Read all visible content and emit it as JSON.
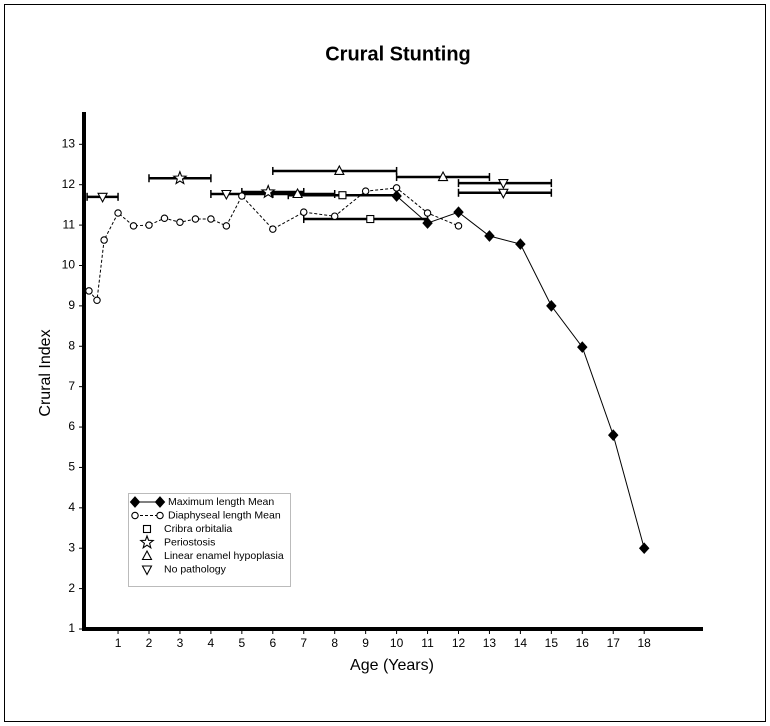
{
  "chart_data": {
    "type": "scatter",
    "title": "Crural Stunting",
    "xlabel": "Age (Years)",
    "ylabel": "Crural  Index",
    "xlim": [
      -0.1,
      19.9
    ],
    "ylim": [
      1,
      13.8
    ],
    "xticks": [
      1,
      2,
      3,
      4,
      5,
      6,
      7,
      8,
      9,
      10,
      11,
      12,
      13,
      14,
      15,
      16,
      17,
      18
    ],
    "yticks": [
      1,
      2,
      3,
      4,
      5,
      6,
      7,
      8,
      9,
      10,
      11,
      12,
      13
    ],
    "series": [
      {
        "name": "Maximum length Mean",
        "marker": "diamond",
        "line": "solid",
        "color": "#000000",
        "x": [
          10,
          11,
          12,
          13,
          14,
          15,
          16,
          17,
          18
        ],
        "values": [
          11.72,
          11.05,
          11.32,
          10.73,
          10.53,
          9.0,
          7.98,
          5.8,
          3.0
        ]
      },
      {
        "name": "Diaphyseal length Mean",
        "marker": "circle",
        "line": "dashed",
        "color": "#000000",
        "x": [
          0.06,
          0.32,
          0.55,
          1,
          1.5,
          2,
          2.5,
          3,
          3.5,
          4,
          4.5,
          5,
          6,
          7,
          8,
          9,
          10,
          11,
          12
        ],
        "values": [
          9.37,
          9.14,
          10.63,
          11.3,
          10.98,
          11.0,
          11.17,
          11.07,
          11.15,
          11.15,
          10.98,
          11.72,
          10.9,
          11.32,
          11.22,
          11.84,
          11.92,
          11.3,
          10.98
        ]
      },
      {
        "name": "Cribra orbitalia",
        "marker": "square",
        "color": "#000000",
        "x": [
          8.25,
          9.15
        ],
        "values": [
          11.74,
          11.15
        ],
        "x_ranges": [
          [
            6.5,
            10
          ],
          [
            7,
            11
          ]
        ]
      },
      {
        "name": "Periostosis",
        "marker": "star",
        "color": "#000000",
        "x": [
          3.0,
          5.85
        ],
        "values": [
          12.16,
          11.82
        ],
        "x_ranges": [
          [
            2,
            4
          ],
          [
            5,
            7
          ]
        ]
      },
      {
        "name": "Linear enamel hypoplasia",
        "marker": "triangle-up",
        "color": "#000000",
        "x": [
          6.8,
          8.15,
          11.5
        ],
        "values": [
          11.77,
          12.34,
          12.19
        ],
        "x_ranges": [
          [
            6,
            8
          ],
          [
            6,
            10
          ],
          [
            10,
            13
          ]
        ]
      },
      {
        "name": "No pathology",
        "marker": "triangle-down",
        "color": "#000000",
        "x": [
          0.5,
          4.5,
          13.45,
          13.45
        ],
        "values": [
          11.7,
          11.77,
          12.04,
          11.8
        ],
        "x_ranges": [
          [
            0,
            1
          ],
          [
            4,
            6
          ],
          [
            12,
            15
          ],
          [
            12,
            15
          ]
        ]
      }
    ]
  }
}
